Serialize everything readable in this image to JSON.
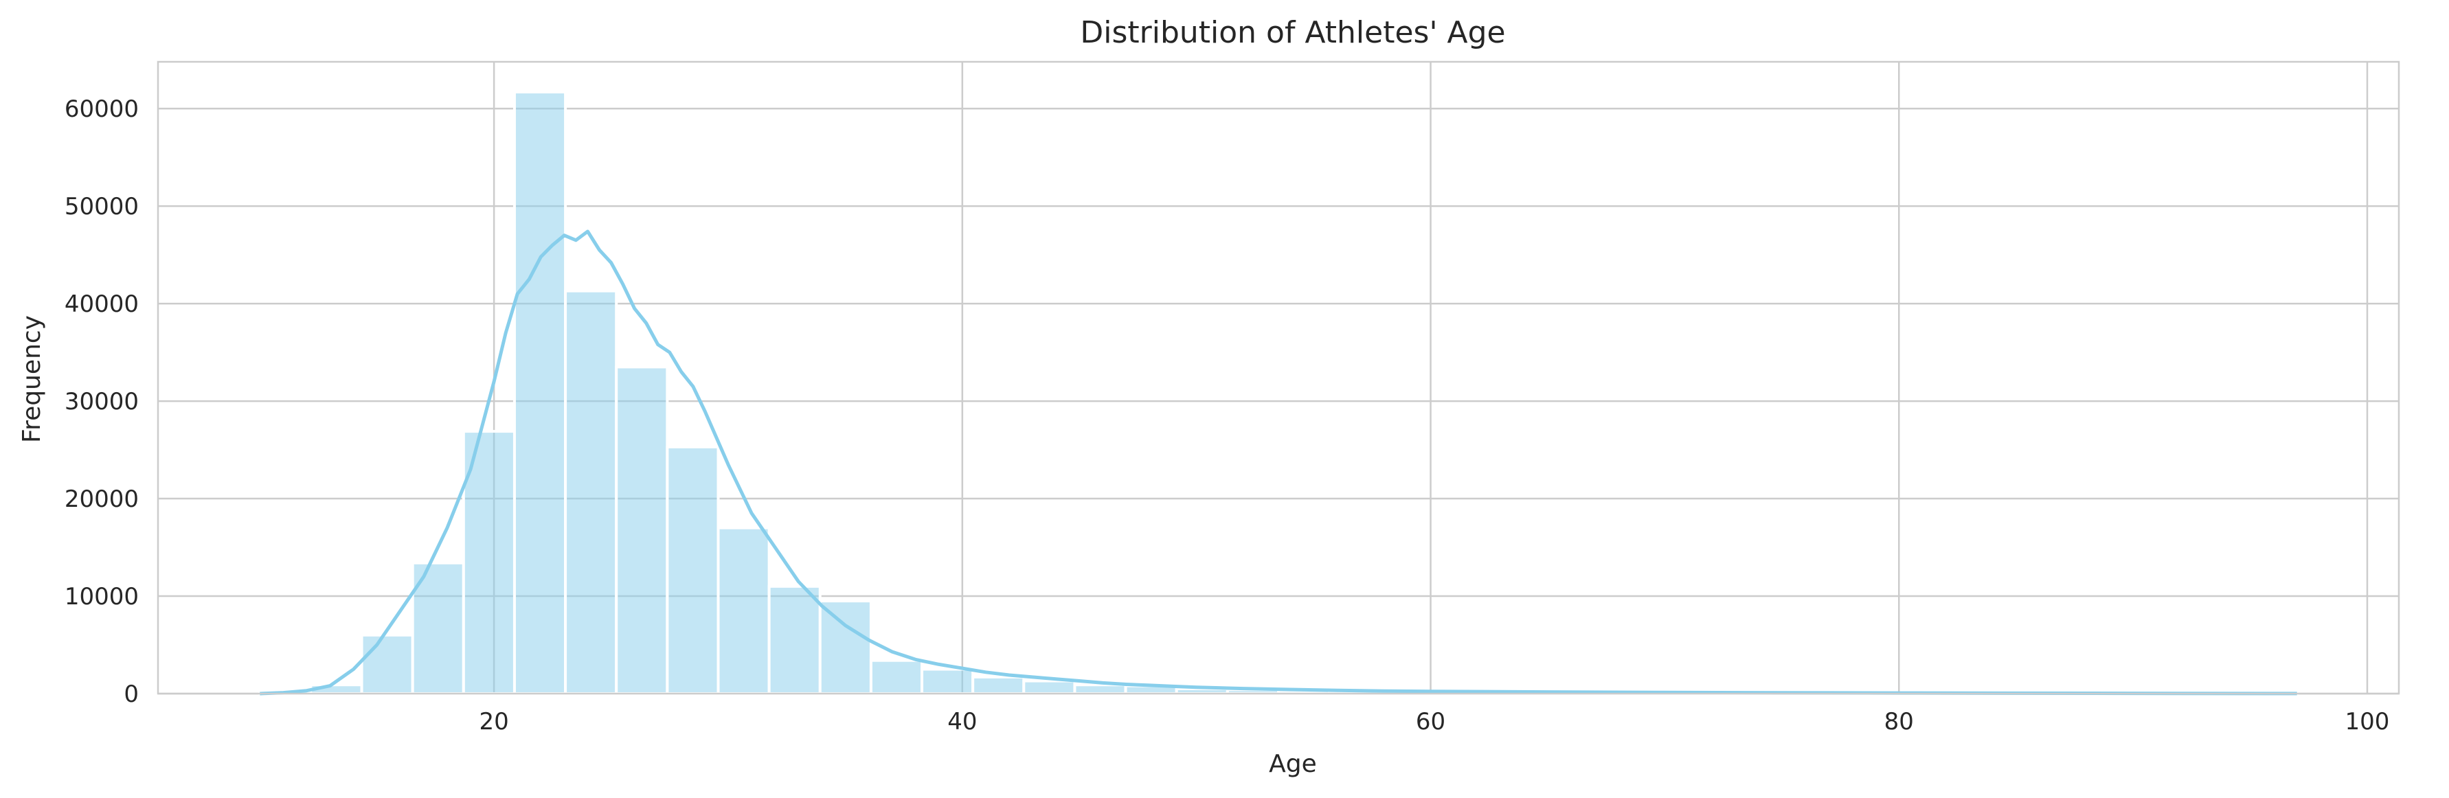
{
  "chart_data": {
    "type": "bar",
    "title": "Distribution of Athletes' Age",
    "xlabel": "Age",
    "ylabel": "Frequency",
    "xlim": [
      5.65,
      101.35
    ],
    "ylim": [
      0,
      64800
    ],
    "xticks": [
      20,
      40,
      60,
      80,
      100
    ],
    "yticks": [
      0,
      10000,
      20000,
      30000,
      40000,
      50000,
      60000
    ],
    "grid": true,
    "bar_color": "#87CEEB",
    "bin_width": 2.175,
    "bins": [
      {
        "x0": 10.0,
        "value": 200
      },
      {
        "x0": 12.175,
        "value": 900
      },
      {
        "x0": 14.35,
        "value": 6000
      },
      {
        "x0": 16.525,
        "value": 13400
      },
      {
        "x0": 18.7,
        "value": 26900
      },
      {
        "x0": 20.875,
        "value": 61700
      },
      {
        "x0": 23.05,
        "value": 41300
      },
      {
        "x0": 25.225,
        "value": 33500
      },
      {
        "x0": 27.4,
        "value": 25300
      },
      {
        "x0": 29.575,
        "value": 17000
      },
      {
        "x0": 31.75,
        "value": 11000
      },
      {
        "x0": 33.925,
        "value": 9500
      },
      {
        "x0": 36.1,
        "value": 3400
      },
      {
        "x0": 38.275,
        "value": 2500
      },
      {
        "x0": 40.45,
        "value": 1700
      },
      {
        "x0": 42.625,
        "value": 1300
      },
      {
        "x0": 44.8,
        "value": 900
      },
      {
        "x0": 46.975,
        "value": 800
      },
      {
        "x0": 49.15,
        "value": 500
      },
      {
        "x0": 51.325,
        "value": 400
      },
      {
        "x0": 53.5,
        "value": 300
      },
      {
        "x0": 55.675,
        "value": 250
      },
      {
        "x0": 57.85,
        "value": 200
      },
      {
        "x0": 60.025,
        "value": 200
      },
      {
        "x0": 62.2,
        "value": 150
      },
      {
        "x0": 64.375,
        "value": 120
      },
      {
        "x0": 66.55,
        "value": 100
      },
      {
        "x0": 68.725,
        "value": 80
      },
      {
        "x0": 70.9,
        "value": 60
      },
      {
        "x0": 73.075,
        "value": 50
      },
      {
        "x0": 75.25,
        "value": 40
      },
      {
        "x0": 77.425,
        "value": 30
      },
      {
        "x0": 79.6,
        "value": 25
      },
      {
        "x0": 81.775,
        "value": 20
      },
      {
        "x0": 83.95,
        "value": 15
      },
      {
        "x0": 86.125,
        "value": 10
      },
      {
        "x0": 88.3,
        "value": 10
      },
      {
        "x0": 90.475,
        "value": 5
      },
      {
        "x0": 92.65,
        "value": 5
      },
      {
        "x0": 94.825,
        "value": 5
      }
    ],
    "kde": {
      "x": [
        10,
        11,
        12,
        13,
        14,
        15,
        16,
        17,
        18,
        19,
        20,
        20.5,
        21,
        21.5,
        22,
        22.5,
        23,
        23.5,
        24,
        24.5,
        25,
        25.5,
        26,
        26.5,
        27,
        27.5,
        28,
        28.5,
        29,
        30,
        31,
        32,
        33,
        34,
        35,
        36,
        37,
        38,
        39,
        40,
        41,
        42,
        43,
        44,
        45,
        46,
        47,
        48,
        49,
        50,
        52,
        54,
        56,
        58,
        60,
        65,
        70,
        75,
        80,
        85,
        90,
        97
      ],
      "y": [
        0,
        100,
        300,
        800,
        2500,
        5000,
        8500,
        12000,
        17000,
        23000,
        32000,
        37000,
        41000,
        42500,
        44800,
        46000,
        47000,
        46500,
        47400,
        45500,
        44200,
        42000,
        39500,
        38000,
        35800,
        35000,
        33000,
        31500,
        29000,
        23500,
        18500,
        15000,
        11500,
        9000,
        7000,
        5500,
        4300,
        3500,
        3000,
        2600,
        2200,
        1900,
        1700,
        1500,
        1300,
        1100,
        950,
        850,
        750,
        650,
        520,
        420,
        330,
        270,
        230,
        170,
        120,
        90,
        65,
        45,
        30,
        10
      ]
    }
  }
}
